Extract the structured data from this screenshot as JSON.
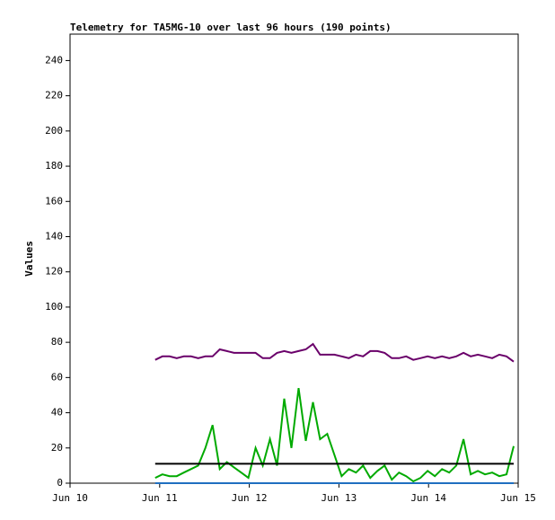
{
  "chart_data": {
    "type": "line",
    "title": "Telemetry for TA5MG-10 over last 96 hours (190 points)",
    "y_label": "Values",
    "x": [
      10.95,
      11.03,
      11.11,
      11.19,
      11.27,
      11.35,
      11.43,
      11.51,
      11.59,
      11.67,
      11.75,
      11.83,
      11.91,
      11.99,
      12.07,
      12.15,
      12.23,
      12.31,
      12.39,
      12.47,
      12.55,
      12.63,
      12.71,
      12.79,
      12.87,
      12.95,
      13.03,
      13.11,
      13.19,
      13.27,
      13.35,
      13.43,
      13.51,
      13.59,
      13.67,
      13.75,
      13.83,
      13.91,
      13.99,
      14.07,
      14.15,
      14.23,
      14.31,
      14.39,
      14.47,
      14.55,
      14.63,
      14.71,
      14.79,
      14.87,
      14.95
    ],
    "series": [
      {
        "color": "#6a006a",
        "values": [
          70,
          72,
          72,
          71,
          72,
          72,
          71,
          72,
          72,
          76,
          75,
          74,
          74,
          74,
          74,
          71,
          71,
          74,
          75,
          74,
          75,
          76,
          79,
          73,
          73,
          73,
          72,
          71,
          73,
          72,
          75,
          75,
          74,
          71,
          71,
          72,
          70,
          71,
          72,
          71,
          72,
          71,
          72,
          74,
          72,
          73,
          72,
          71,
          73,
          72,
          69
        ]
      },
      {
        "color": "#00aa00",
        "values": [
          3,
          5,
          4,
          4,
          6,
          8,
          10,
          20,
          33,
          8,
          12,
          9,
          6,
          3,
          20,
          10,
          25,
          10,
          48,
          20,
          54,
          24,
          46,
          25,
          28,
          16,
          4,
          8,
          6,
          10,
          3,
          7,
          10,
          2,
          6,
          4,
          1,
          3,
          7,
          4,
          8,
          6,
          10,
          25,
          5,
          7,
          5,
          6,
          4,
          5,
          21
        ]
      },
      {
        "color": "#000000",
        "values": [
          11,
          11,
          11,
          11,
          11,
          11,
          11,
          11,
          11,
          11,
          11,
          11,
          11,
          11,
          11,
          11,
          11,
          11,
          11,
          11,
          11,
          11,
          11,
          11,
          11,
          11,
          11,
          11,
          11,
          11,
          11,
          11,
          11,
          11,
          11,
          11,
          11,
          11,
          11,
          11,
          11,
          11,
          11,
          11,
          11,
          11,
          11,
          11,
          11,
          11,
          11
        ]
      },
      {
        "color": "#1f6fc0",
        "values": [
          0,
          0,
          0,
          0,
          0,
          0,
          0,
          0,
          0,
          0,
          0,
          0,
          0,
          0,
          0,
          0,
          0,
          0,
          0,
          0,
          0,
          0,
          0,
          0,
          0,
          0,
          0,
          0,
          0,
          0,
          0,
          0,
          0,
          0,
          0,
          0,
          0,
          0,
          0,
          0,
          0,
          0,
          0,
          0,
          0,
          0,
          0,
          0,
          0,
          0,
          0
        ]
      }
    ],
    "xlim": [
      10,
      15
    ],
    "xticks": [
      {
        "value": 10,
        "label": "Jun 10"
      },
      {
        "value": 11,
        "label": "Jun 11"
      },
      {
        "value": 12,
        "label": "Jun 12"
      },
      {
        "value": 13,
        "label": "Jun 13"
      },
      {
        "value": 14,
        "label": "Jun 14"
      },
      {
        "value": 15,
        "label": "Jun 15"
      }
    ],
    "ylim": [
      0,
      255
    ],
    "yticks": [
      0,
      20,
      40,
      60,
      80,
      100,
      120,
      140,
      160,
      180,
      200,
      220,
      240
    ]
  }
}
